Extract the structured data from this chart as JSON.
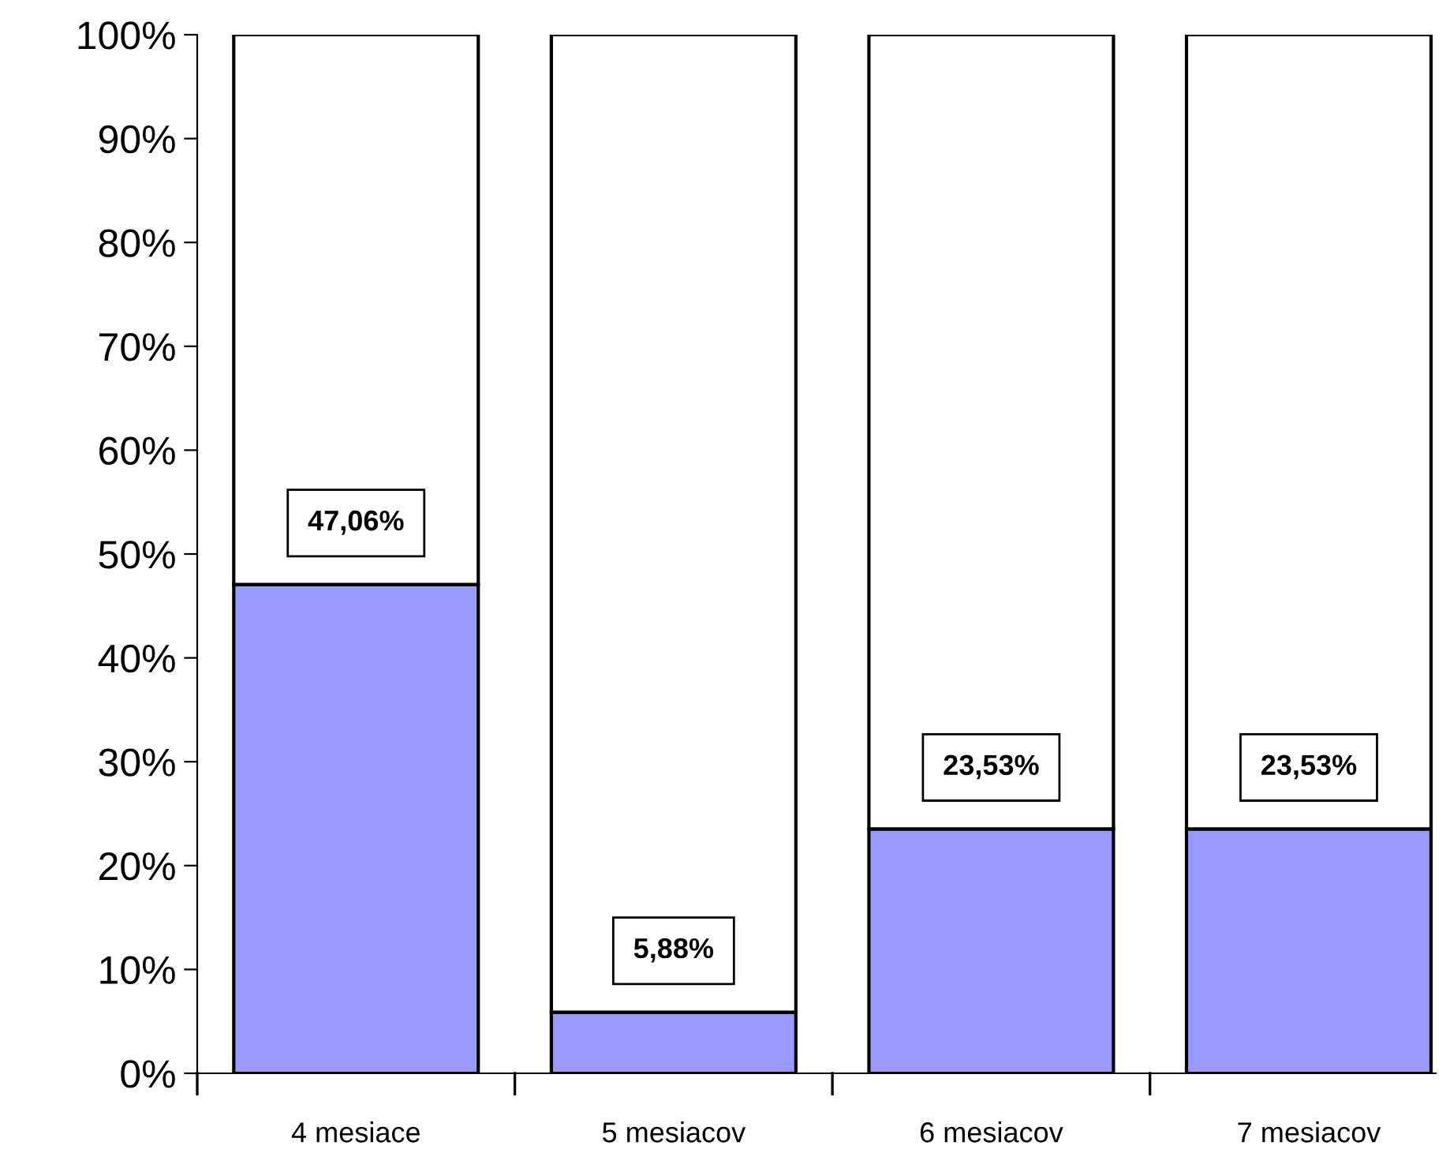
{
  "chart_data": {
    "type": "bar",
    "stacked": true,
    "categories": [
      "4 mesiace",
      "5 mesiacov",
      "6 mesiacov",
      "7 mesiacov"
    ],
    "series": [
      {
        "color": "#9999ff",
        "values": [
          47.06,
          5.88,
          23.53,
          23.53
        ],
        "value_labels": [
          "47,06%",
          "5,88%",
          "23,53%",
          "23,53%"
        ]
      },
      {
        "color": "#ffffff",
        "values": [
          52.94,
          94.12,
          76.47,
          76.47
        ]
      }
    ],
    "ylim": [
      0,
      100
    ],
    "yticks": [
      {
        "value": 0,
        "label": "0%"
      },
      {
        "value": 10,
        "label": "10%"
      },
      {
        "value": 20,
        "label": "20%"
      },
      {
        "value": 30,
        "label": "30%"
      },
      {
        "value": 40,
        "label": "40%"
      },
      {
        "value": 50,
        "label": "50%"
      },
      {
        "value": 60,
        "label": "60%"
      },
      {
        "value": 70,
        "label": "70%"
      },
      {
        "value": 80,
        "label": "80%"
      },
      {
        "value": 90,
        "label": "90%"
      },
      {
        "value": 100,
        "label": "100%"
      }
    ],
    "grid": false,
    "legend": false
  }
}
